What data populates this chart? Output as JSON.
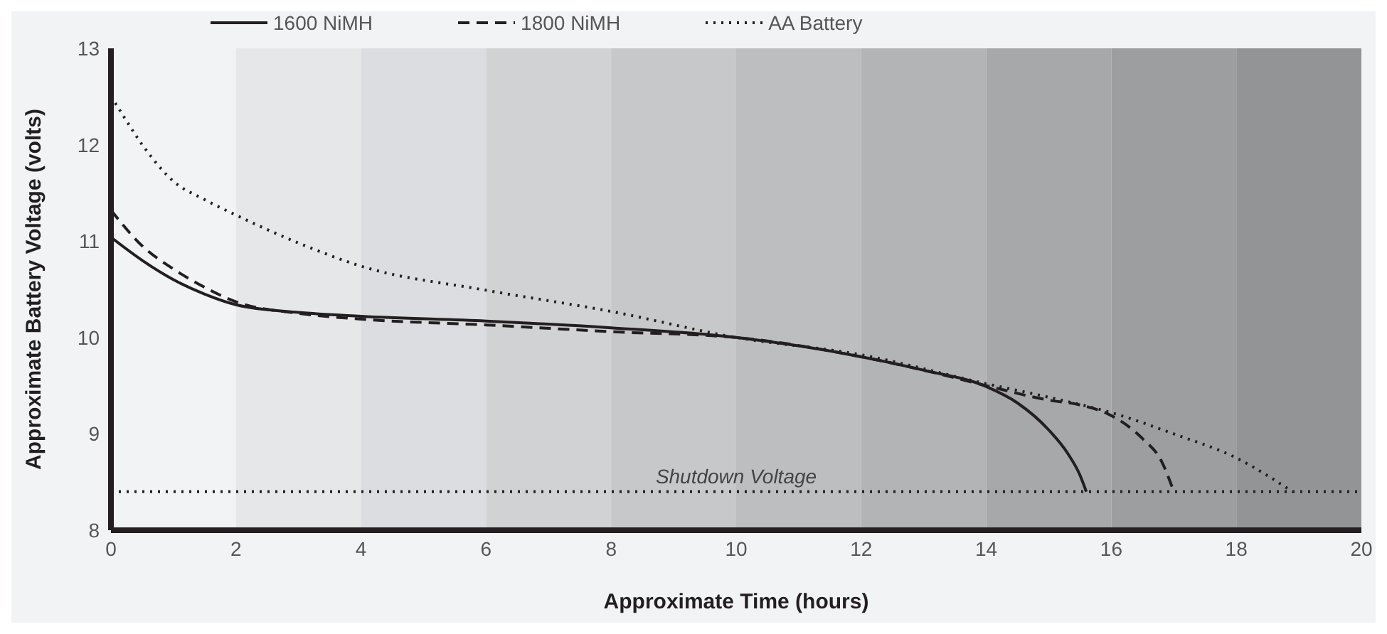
{
  "chart_data": {
    "type": "line",
    "xlabel": "Approximate Time (hours)",
    "ylabel": "Approximate Battery Voltage (volts)",
    "xlim": [
      0,
      20
    ],
    "xticks": [
      0,
      2,
      4,
      6,
      8,
      10,
      12,
      14,
      16,
      18,
      20
    ],
    "ylim": [
      8,
      13
    ],
    "yticks": [
      8,
      9,
      10,
      11,
      12,
      13
    ],
    "grid": false,
    "legend": "top",
    "marker": "none",
    "series": [
      {
        "name": "1600 NiMH",
        "color": "#231f20",
        "line_style": "solid",
        "x": [
          0,
          0.5,
          1,
          1.5,
          2,
          3,
          4,
          6,
          8,
          10,
          12,
          13,
          14,
          14.5,
          15,
          15.3,
          15.5,
          15.6
        ],
        "values": [
          11.04,
          10.8,
          10.6,
          10.45,
          10.34,
          10.26,
          10.22,
          10.17,
          10.1,
          10,
          9.8,
          9.66,
          9.49,
          9.32,
          9.04,
          8.8,
          8.57,
          8.4
        ]
      },
      {
        "name": "1800 NiMH",
        "color": "#231f20",
        "line_style": "dashed",
        "x": [
          0,
          0.5,
          1,
          1.5,
          2,
          3,
          4,
          6,
          8,
          10,
          12,
          13,
          14,
          15,
          15.5,
          16,
          16.5,
          16.8,
          17
        ],
        "values": [
          11.32,
          10.95,
          10.71,
          10.52,
          10.37,
          10.25,
          10.19,
          10.13,
          10.06,
          10,
          9.8,
          9.66,
          9.5,
          9.35,
          9.3,
          9.19,
          8.95,
          8.72,
          8.4
        ]
      },
      {
        "name": "AA Battery",
        "color": "#231f20",
        "line_style": "dotted",
        "x": [
          0,
          0.1,
          0.5,
          1,
          1.5,
          2,
          3,
          4,
          6,
          8,
          10,
          12,
          14,
          15,
          16,
          17,
          18,
          18.9
        ],
        "values": [
          12.5,
          12.4,
          12.0,
          11.62,
          11.43,
          11.27,
          10.98,
          10.74,
          10.49,
          10.27,
          10,
          9.82,
          9.52,
          9.38,
          9.22,
          9.0,
          8.75,
          8.4
        ]
      }
    ],
    "ref_lines": [
      {
        "axis": "y",
        "value": 8.4,
        "label": "Shutdown Voltage",
        "line_style": "dotted",
        "color": "#231f20"
      }
    ],
    "bands": [
      {
        "axis": "x",
        "from": 2,
        "to": 4,
        "color": "#e6e7e9"
      },
      {
        "axis": "x",
        "from": 4,
        "to": 6,
        "color": "#dcdde0"
      },
      {
        "axis": "x",
        "from": 6,
        "to": 8,
        "color": "#d1d2d4"
      },
      {
        "axis": "x",
        "from": 8,
        "to": 10,
        "color": "#c7c8ca"
      },
      {
        "axis": "x",
        "from": 10,
        "to": 12,
        "color": "#bdbec0"
      },
      {
        "axis": "x",
        "from": 12,
        "to": 14,
        "color": "#b3b4b6"
      },
      {
        "axis": "x",
        "from": 14,
        "to": 16,
        "color": "#a7a8aa"
      },
      {
        "axis": "x",
        "from": 16,
        "to": 18,
        "color": "#9d9ea0"
      },
      {
        "axis": "x",
        "from": 18,
        "to": 20,
        "color": "#939496"
      }
    ]
  }
}
